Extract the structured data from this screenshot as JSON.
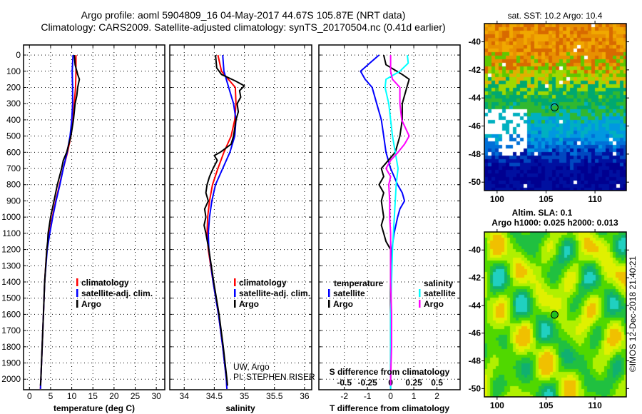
{
  "title_line1": "Argo profile: aoml 5904809_16 04-May-2017 44.67S 105.87E (NRT data)",
  "title_line2": "Climatology: CARS2009. Satellite-adjusted climatology: synTS_20170504.nc (0.41d earlier)",
  "credit_line1": "UW, Argo",
  "credit_line2": "PI: STEPHEN RISER",
  "copyright": "©IMOS 12-Dec-2018 21:40:21",
  "colors": {
    "climatology": "#ff0000",
    "satellite": "#0000ff",
    "argo": "#000000",
    "sal_satellite": "#00ffff",
    "sal_argo": "#ff00ff"
  },
  "chart_data": [
    {
      "type": "line",
      "id": "temperature",
      "xlabel": "temperature (deg C)",
      "ylabel": "depth",
      "xlim": [
        -1.4,
        32
      ],
      "ylim": [
        2065,
        -62
      ],
      "xticks": [
        0,
        5,
        10,
        15,
        20,
        25,
        30
      ],
      "yticks": [
        0,
        100,
        200,
        300,
        400,
        500,
        600,
        700,
        800,
        900,
        1000,
        1100,
        1200,
        1300,
        1400,
        1500,
        1600,
        1700,
        1800,
        1900,
        2000
      ],
      "grid": true,
      "legend": {
        "placement": "center-right",
        "entries": [
          "climatology",
          "satellite-adj. clim.",
          "Argo"
        ]
      },
      "series": [
        {
          "name": "climatology",
          "color": "#ff0000",
          "depth": [
            0,
            100,
            200,
            300,
            400,
            500,
            600,
            700,
            800,
            900,
            1000,
            1100,
            1200,
            1400,
            1600,
            1800,
            2000,
            2060
          ],
          "values": [
            11.0,
            11.0,
            10.9,
            10.6,
            10.3,
            9.8,
            9.0,
            8.0,
            7.1,
            6.2,
            5.4,
            4.7,
            4.1,
            3.6,
            3.3,
            3.0,
            2.7,
            2.6
          ]
        },
        {
          "name": "satellite-adj. clim.",
          "color": "#0000ff",
          "depth": [
            0,
            100,
            200,
            300,
            400,
            500,
            600,
            700,
            800,
            900,
            1000,
            1100,
            1200,
            1400,
            1600,
            1800,
            2000,
            2060
          ],
          "values": [
            10.3,
            10.1,
            10.2,
            10.2,
            10.0,
            9.6,
            8.9,
            8.0,
            7.2,
            6.3,
            5.5,
            4.8,
            4.2,
            3.6,
            3.3,
            3.0,
            2.7,
            2.6
          ]
        },
        {
          "name": "Argo",
          "color": "#000000",
          "depth": [
            0,
            60,
            120,
            150,
            200,
            250,
            300,
            400,
            500,
            600,
            650,
            700,
            800,
            900,
            1000,
            1050,
            1100,
            1150,
            1200,
            1400,
            1600,
            1800,
            2000,
            2040
          ],
          "values": [
            10.6,
            10.8,
            11.4,
            11.8,
            11.4,
            11.2,
            10.8,
            10.4,
            9.8,
            8.8,
            8.0,
            7.6,
            6.6,
            5.8,
            5.0,
            4.7,
            4.4,
            4.3,
            4.1,
            3.6,
            3.3,
            3.0,
            2.7,
            2.6
          ]
        }
      ]
    },
    {
      "type": "line",
      "id": "salinity",
      "xlabel": "salinity",
      "ylabel": "depth",
      "xlim": [
        33.76,
        36.12
      ],
      "ylim": [
        2065,
        -62
      ],
      "xticks": [
        34,
        34.5,
        35,
        35.5,
        36
      ],
      "grid": true,
      "legend": {
        "placement": "center-right",
        "entries": [
          "climatology",
          "satellite-adj. clim.",
          "Argo"
        ]
      },
      "series": [
        {
          "name": "climatology",
          "color": "#ff0000",
          "depth": [
            0,
            100,
            200,
            300,
            400,
            500,
            600,
            700,
            800,
            900,
            1000,
            1100,
            1200,
            1400,
            1600,
            1800,
            2000,
            2060
          ],
          "values": [
            34.56,
            34.62,
            34.85,
            34.86,
            34.84,
            34.78,
            34.66,
            34.56,
            34.47,
            34.42,
            34.39,
            34.38,
            34.4,
            34.48,
            34.57,
            34.64,
            34.7,
            34.71
          ]
        },
        {
          "name": "satellite-adj. clim.",
          "color": "#0000ff",
          "depth": [
            0,
            100,
            200,
            300,
            400,
            500,
            600,
            700,
            800,
            900,
            1000,
            1100,
            1200,
            1400,
            1600,
            1800,
            2000,
            2060
          ],
          "values": [
            34.64,
            34.66,
            34.74,
            34.82,
            34.86,
            34.84,
            34.76,
            34.64,
            34.52,
            34.46,
            34.42,
            34.4,
            34.41,
            34.48,
            34.57,
            34.64,
            34.7,
            34.71
          ]
        },
        {
          "name": "Argo",
          "color": "#000000",
          "depth": [
            0,
            80,
            120,
            160,
            190,
            220,
            260,
            300,
            350,
            400,
            450,
            500,
            550,
            600,
            620,
            650,
            700,
            750,
            800,
            850,
            900,
            950,
            1000,
            1050,
            1100,
            1200,
            1400,
            1600,
            1800,
            2000,
            2040
          ],
          "values": [
            34.52,
            34.54,
            34.62,
            34.85,
            35.0,
            34.92,
            34.94,
            34.88,
            34.9,
            34.86,
            34.84,
            34.82,
            34.78,
            34.6,
            34.5,
            34.55,
            34.48,
            34.42,
            34.38,
            34.36,
            34.4,
            34.34,
            34.36,
            34.33,
            34.36,
            34.41,
            34.49,
            34.58,
            34.65,
            34.71,
            34.72
          ]
        }
      ]
    },
    {
      "type": "line",
      "id": "difference",
      "xlabel": "T difference from climatology",
      "x2label": "S difference from climatology",
      "xlim": [
        -3.1,
        3.0
      ],
      "x2lim": [
        -0.775,
        0.75
      ],
      "ylim": [
        2065,
        -62
      ],
      "xticks": [
        -2,
        -1,
        0,
        1,
        2
      ],
      "x2ticks": [
        -0.5,
        -0.25,
        0,
        0.25,
        0.5
      ],
      "grid": true,
      "legend": {
        "placement": "bottom",
        "headers": [
          "temperature",
          "salinity"
        ],
        "entries": [
          "satellite",
          "Argo",
          "satellite",
          "Argo"
        ]
      },
      "series": [
        {
          "name": "temperature satellite",
          "axis": "T",
          "color": "#0000ff",
          "depth": [
            0,
            50,
            100,
            150,
            200,
            300,
            400,
            500,
            600,
            700,
            800,
            850,
            900,
            950,
            1000,
            1100,
            1200,
            1400,
            1600,
            1800,
            2000,
            2060
          ],
          "values": [
            -0.5,
            -0.9,
            -1.3,
            -1.1,
            -0.8,
            -0.6,
            -0.4,
            -0.3,
            -0.2,
            0.0,
            0.3,
            0.5,
            0.6,
            0.4,
            0.3,
            0.15,
            0.05,
            0.0,
            0.0,
            0.0,
            0.0,
            0.0
          ]
        },
        {
          "name": "temperature Argo",
          "axis": "T",
          "color": "#000000",
          "depth": [
            0,
            60,
            120,
            150,
            200,
            250,
            300,
            400,
            500,
            600,
            650,
            700,
            750,
            800,
            850,
            900,
            1000,
            1050,
            1100,
            1150,
            1200,
            1300,
            1400,
            1600,
            1800,
            2000,
            2040
          ],
          "values": [
            -0.3,
            -0.2,
            0.5,
            0.8,
            0.7,
            0.6,
            0.5,
            0.5,
            0.4,
            0.2,
            -0.1,
            -0.4,
            -0.3,
            -0.5,
            -0.3,
            -0.4,
            -0.3,
            -0.4,
            -0.3,
            -0.2,
            0.0,
            0.0,
            0.0,
            0.0,
            0.0,
            0.0,
            0.0
          ]
        },
        {
          "name": "salinity satellite",
          "axis": "S",
          "color": "#00ffff",
          "depth": [
            0,
            50,
            100,
            150,
            200,
            300,
            400,
            500,
            600,
            700,
            800,
            900,
            1000,
            1100,
            1200,
            1400,
            1600,
            1800,
            2000,
            2060
          ],
          "values": [
            0.18,
            0.19,
            0.1,
            -0.05,
            -0.06,
            -0.02,
            0.0,
            0.02,
            0.05,
            0.08,
            0.06,
            0.05,
            0.04,
            0.03,
            0.02,
            0.01,
            0.0,
            0.0,
            0.0,
            0.0
          ]
        },
        {
          "name": "salinity Argo",
          "axis": "S",
          "color": "#ff00ff",
          "depth": [
            0,
            100,
            150,
            200,
            300,
            400,
            450,
            500,
            550,
            600,
            650,
            700,
            750,
            800,
            900,
            1000,
            1100,
            1200,
            1400,
            1600,
            1800,
            2000,
            2040
          ],
          "values": [
            0.0,
            0.0,
            0.02,
            0.1,
            0.1,
            0.12,
            0.16,
            0.2,
            0.15,
            0.08,
            0.0,
            -0.05,
            0.0,
            -0.02,
            -0.01,
            -0.01,
            0.0,
            0.0,
            0.0,
            0.01,
            0.01,
            0.0,
            0.0
          ]
        }
      ]
    },
    {
      "type": "heatmap",
      "id": "sst-map",
      "title": "sat. SST: 10.2 Argo: 10.4",
      "xlim": [
        98.7,
        113.2
      ],
      "ylim": [
        -38.7,
        -50.6
      ],
      "xticks": [
        100,
        105,
        110
      ],
      "yticks": [
        -40,
        -42,
        -44,
        -46,
        -48,
        -50
      ],
      "marker": {
        "lon": 105.87,
        "lat": -44.67
      }
    },
    {
      "type": "heatmap",
      "id": "sla-map",
      "title_line1": "Altim. SLA: 0.1",
      "title_line2": "Argo h1000: 0.025 h2000: 0.013",
      "xlim": [
        98.7,
        113.2
      ],
      "ylim": [
        -38.7,
        -50.6
      ],
      "xticks": [
        100,
        105,
        110
      ],
      "yticks": [
        -40,
        -42,
        -44,
        -46,
        -48,
        -50
      ],
      "marker": {
        "lon": 105.87,
        "lat": -44.67
      }
    }
  ]
}
